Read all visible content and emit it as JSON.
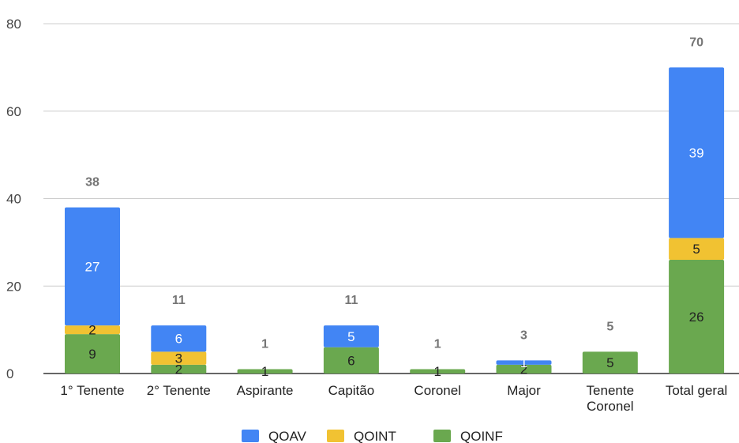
{
  "chart_data": {
    "type": "bar",
    "stacked": true,
    "categories": [
      "1° Tenente",
      "2° Tenente",
      "Aspirante",
      "Capitão",
      "Coronel",
      "Major",
      "Tenente Coronel",
      "Total geral"
    ],
    "series": [
      {
        "name": "QOINF",
        "values": [
          9,
          2,
          1,
          6,
          1,
          2,
          5,
          26
        ],
        "color": "#6aa84f"
      },
      {
        "name": "QOINT",
        "values": [
          2,
          3,
          0,
          0,
          0,
          0,
          0,
          5
        ],
        "color": "#f1c232"
      },
      {
        "name": "QOAV",
        "values": [
          27,
          6,
          0,
          5,
          0,
          1,
          0,
          39
        ],
        "color": "#4285f4"
      }
    ],
    "totals": [
      38,
      11,
      1,
      11,
      1,
      3,
      5,
      70
    ],
    "yticks": [
      0,
      20,
      40,
      60,
      80
    ],
    "ylim": [
      0,
      80
    ],
    "grid": true,
    "legend": {
      "position": "bottom",
      "order": [
        "QOAV",
        "QOINT",
        "QOINF"
      ]
    }
  }
}
